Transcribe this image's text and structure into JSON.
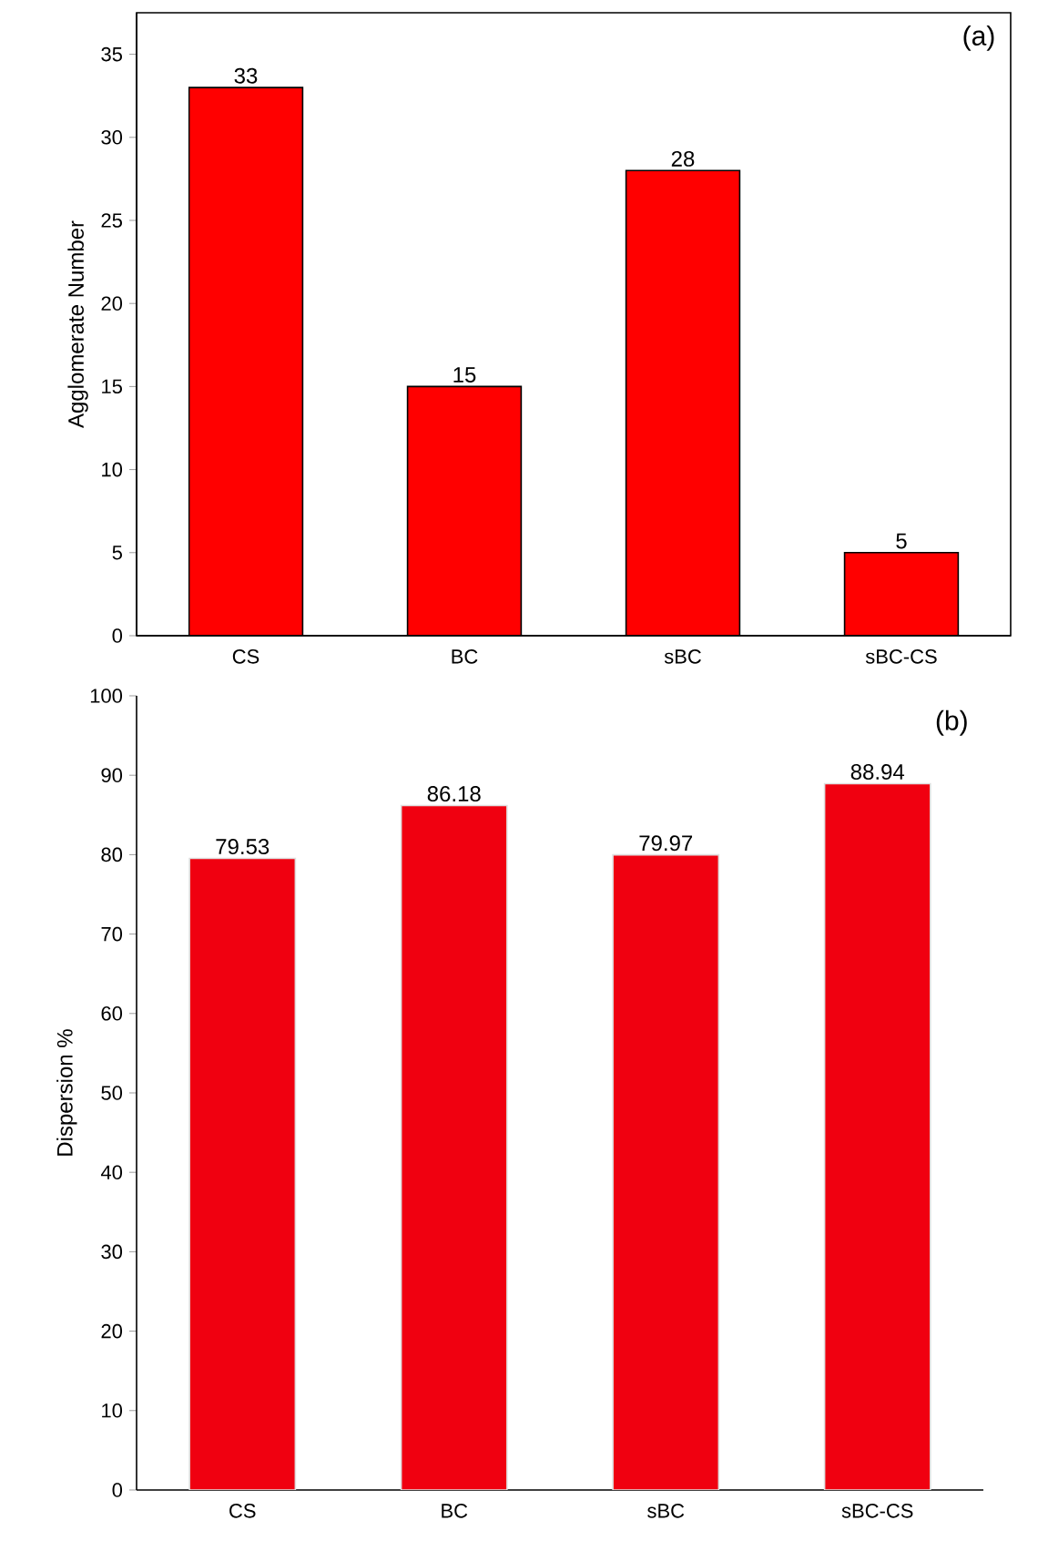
{
  "chart_data": [
    {
      "type": "bar",
      "ylabel": "Agglomerate Number",
      "categories": [
        "CS",
        "BC",
        "sBC",
        "sBC-CS"
      ],
      "values": [
        33,
        15,
        28,
        5
      ],
      "color": "#ff0000",
      "ylim": [
        0,
        37.5
      ],
      "yticks": [
        0,
        5,
        10,
        15,
        20,
        25,
        30,
        35
      ],
      "data_labels": true,
      "annotations": [
        "(a)"
      ]
    },
    {
      "type": "bar",
      "ylabel": "Dispersion %",
      "categories": [
        "CS",
        "BC",
        "sBC",
        "sBC-CS"
      ],
      "values": [
        79.53,
        86.18,
        79.97,
        88.94
      ],
      "color": "#f00010",
      "ylim": [
        0,
        100
      ],
      "yticks": [
        0,
        10,
        20,
        30,
        40,
        50,
        60,
        70,
        80,
        90,
        100
      ],
      "data_labels": true,
      "annotations": [
        "(b)"
      ]
    }
  ]
}
